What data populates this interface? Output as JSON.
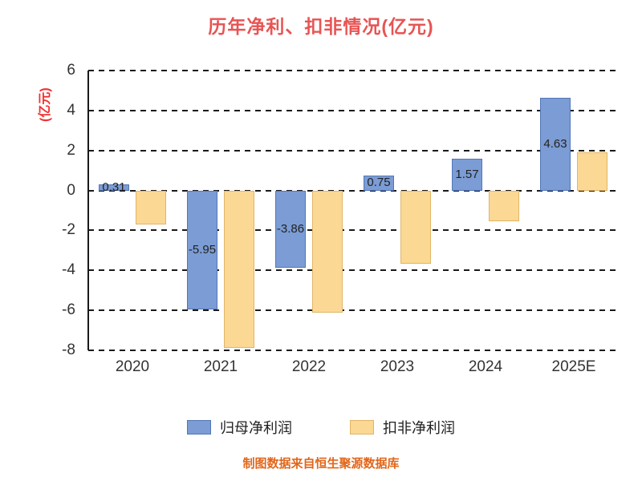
{
  "chart_data": {
    "type": "bar",
    "title": "历年净利、扣非情况(亿元)",
    "ylabel": "(亿元)",
    "categories": [
      "2020",
      "2021",
      "2022",
      "2023",
      "2024",
      "2025E"
    ],
    "series": [
      {
        "name": "归母净利润",
        "color": "#7b9cd4",
        "border_color": "#5376b8",
        "values": [
          0.31,
          -5.95,
          -3.86,
          0.75,
          1.57,
          4.63
        ],
        "labels": [
          "0.31",
          "-5.95",
          "-3.86",
          "0.75",
          "1.57",
          "4.63"
        ]
      },
      {
        "name": "扣非净利润",
        "color": "#fbd893",
        "border_color": "#e0b668",
        "values": [
          -1.7,
          -7.9,
          -6.1,
          -3.65,
          -1.55,
          1.9
        ],
        "labels": [
          "",
          "",
          "",
          "",
          "",
          ""
        ]
      }
    ],
    "yticks": [
      6,
      4,
      2,
      0,
      -2,
      -4,
      -6,
      -8
    ],
    "ylim": [
      -8,
      6
    ],
    "grid": "dashed-horizontal",
    "legend_position": "bottom"
  },
  "footer": {
    "note": "制图数据来自恒生聚源数据库"
  },
  "colors": {
    "title": "#e85454",
    "ylabel": "#f23030",
    "footer": "#e2661a",
    "tick_text": "#333333",
    "bar_label_text": "#222222"
  }
}
